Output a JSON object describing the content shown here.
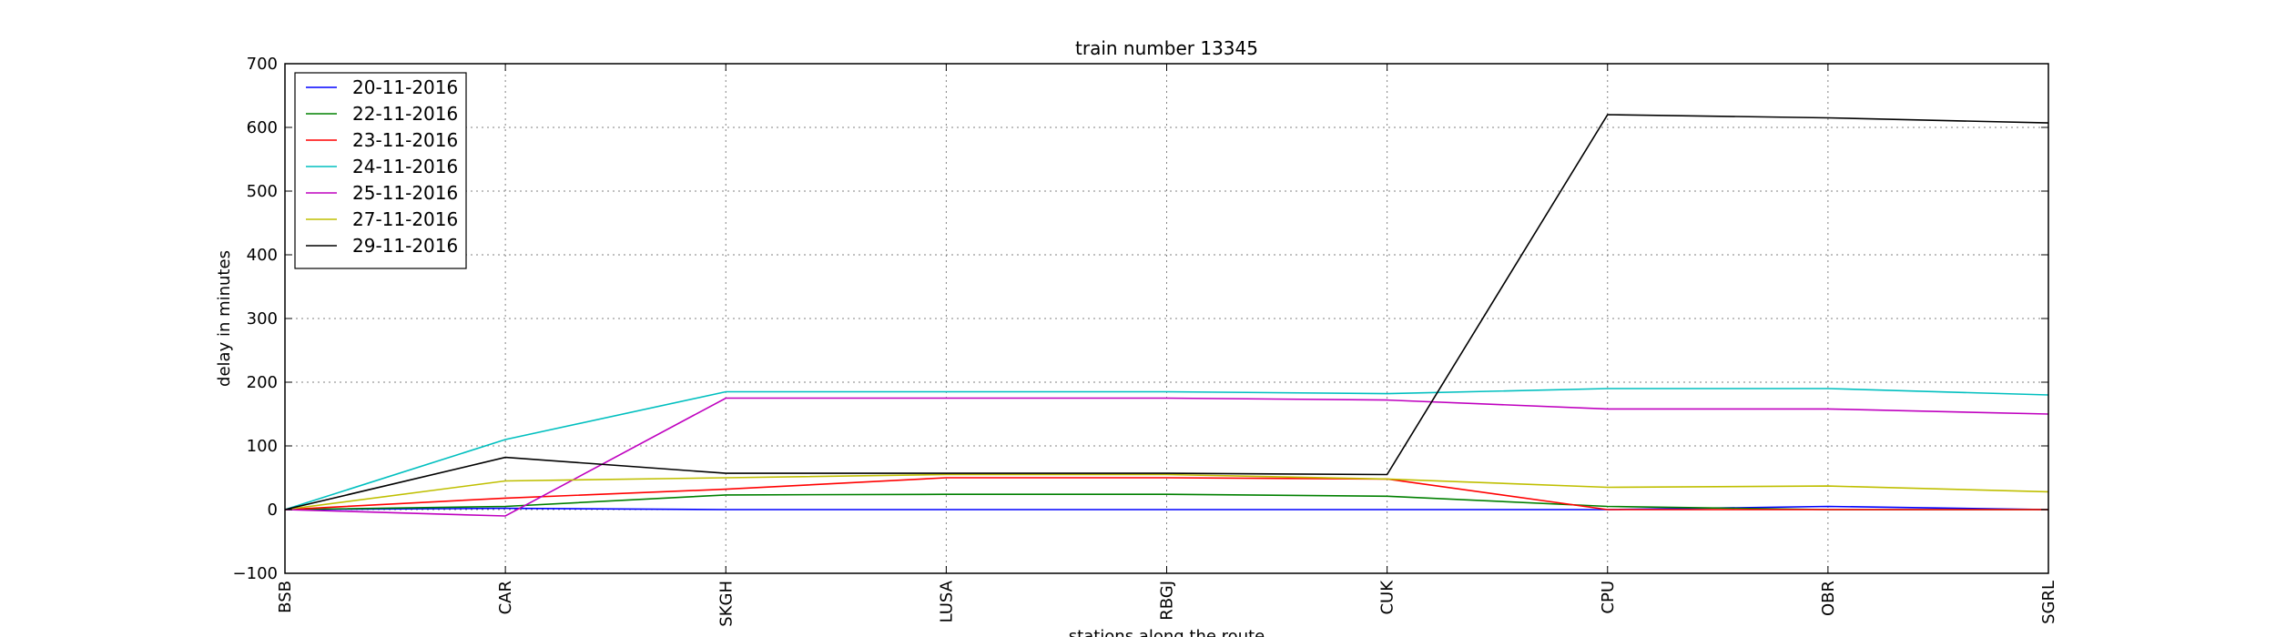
{
  "chart_data": {
    "type": "line",
    "title": "train number 13345",
    "xlabel": "stations along the route",
    "ylabel": "delay in minutes",
    "categories": [
      "BSB",
      "CAR",
      "SKGH",
      "LUSA",
      "RBGJ",
      "CUK",
      "CPU",
      "OBR",
      "SGRL"
    ],
    "ylim": [
      -100,
      700
    ],
    "yticks": [
      -100,
      0,
      100,
      200,
      300,
      400,
      500,
      600,
      700
    ],
    "grid": true,
    "legend_position": "top-left",
    "series": [
      {
        "name": "20-11-2016",
        "color": "#0000ff",
        "values": [
          0,
          2,
          0,
          0,
          0,
          0,
          0,
          5,
          0
        ]
      },
      {
        "name": "22-11-2016",
        "color": "#008000",
        "values": [
          0,
          5,
          23,
          24,
          24,
          21,
          5,
          0,
          0
        ]
      },
      {
        "name": "23-11-2016",
        "color": "#ff0000",
        "values": [
          0,
          18,
          32,
          50,
          50,
          48,
          0,
          0,
          0
        ]
      },
      {
        "name": "24-11-2016",
        "color": "#00bfbf",
        "values": [
          0,
          110,
          185,
          185,
          185,
          182,
          190,
          190,
          180
        ]
      },
      {
        "name": "25-11-2016",
        "color": "#bf00bf",
        "values": [
          0,
          -10,
          175,
          175,
          175,
          172,
          158,
          158,
          150
        ]
      },
      {
        "name": "27-11-2016",
        "color": "#bfbf00",
        "values": [
          0,
          45,
          50,
          55,
          55,
          48,
          35,
          37,
          28
        ]
      },
      {
        "name": "29-11-2016",
        "color": "#000000",
        "values": [
          0,
          82,
          57,
          57,
          57,
          55,
          620,
          615,
          607
        ]
      }
    ]
  }
}
